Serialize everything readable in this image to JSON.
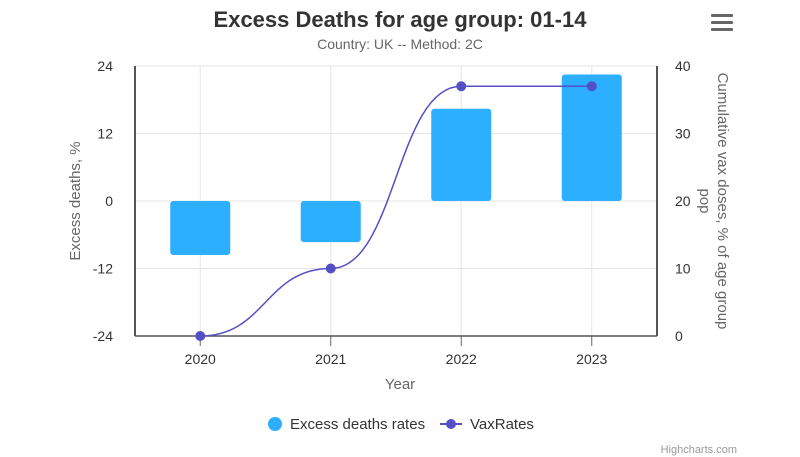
{
  "chart_data": {
    "type": "bar+line",
    "title": "Excess Deaths for age group: 01-14",
    "subtitle": "Country: UK -- Method: 2C",
    "xlabel": "Year",
    "ylabel": "Excess deaths, %",
    "y2label": "Cumulative vax doses, % of age group pop",
    "categories": [
      "2020",
      "2021",
      "2022",
      "2023"
    ],
    "ylim": [
      -24,
      24
    ],
    "yticks": [
      -24,
      -12,
      0,
      12,
      24
    ],
    "y2lim": [
      0,
      40
    ],
    "y2ticks": [
      0,
      10,
      20,
      30,
      40
    ],
    "grid": true,
    "legend_placement": "bottom",
    "series": [
      {
        "name": "Excess deaths rates",
        "type": "bar",
        "axis": "left",
        "color": "#2caffe",
        "values": [
          -9.6,
          -7.3,
          16.4,
          22.5
        ]
      },
      {
        "name": "VaxRates",
        "type": "spline",
        "axis": "right",
        "color": "#544fc5",
        "values": [
          0,
          10,
          37,
          37
        ]
      }
    ],
    "credits": "Highcharts.com"
  },
  "menu_icon": "hamburger-menu-icon"
}
